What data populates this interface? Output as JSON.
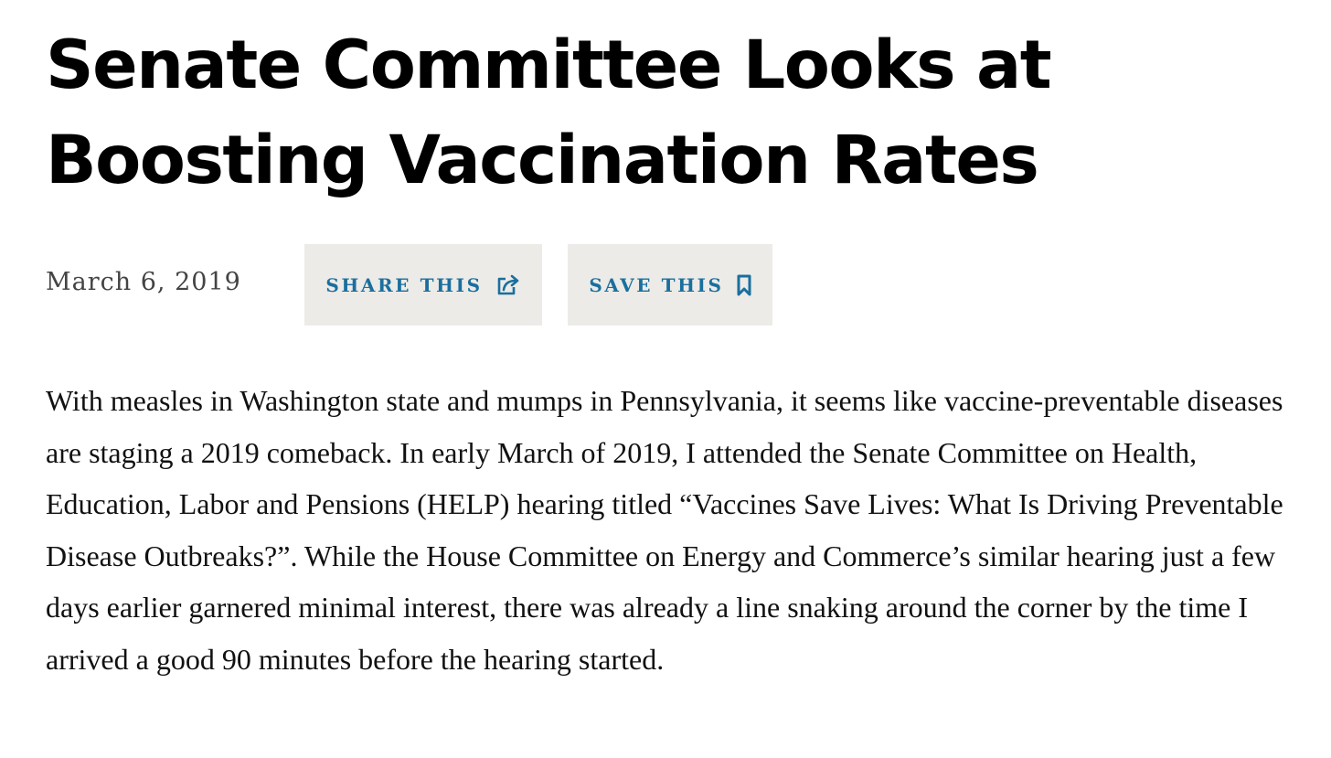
{
  "article": {
    "title": "Senate Committee Looks at Boosting Vaccination Rates",
    "date": "March 6, 2019",
    "share_label": "SHARE THIS",
    "save_label": "SAVE THIS",
    "body": "With measles in Washington state and mumps in Pennsylvania, it seems like vaccine-preventable diseases are staging a 2019 comeback. In early March of 2019, I attended the Senate Committee on Health, Education, Labor and Pensions (HELP) hearing titled “Vaccines Save Lives: What Is Driving Preventable Disease Outbreaks?”. While the House Committee on Energy and Commerce’s similar hearing just a few days earlier garnered minimal interest, there was already a line snaking around the corner by the time I arrived a good 90 minutes before the hearing started."
  },
  "icons": {
    "share": "share-icon",
    "save": "bookmark-icon"
  },
  "colors": {
    "accent": "#1a6f9e",
    "button_bg": "#ecebe7",
    "title": "#000000",
    "date": "#444444",
    "body": "#111111"
  }
}
